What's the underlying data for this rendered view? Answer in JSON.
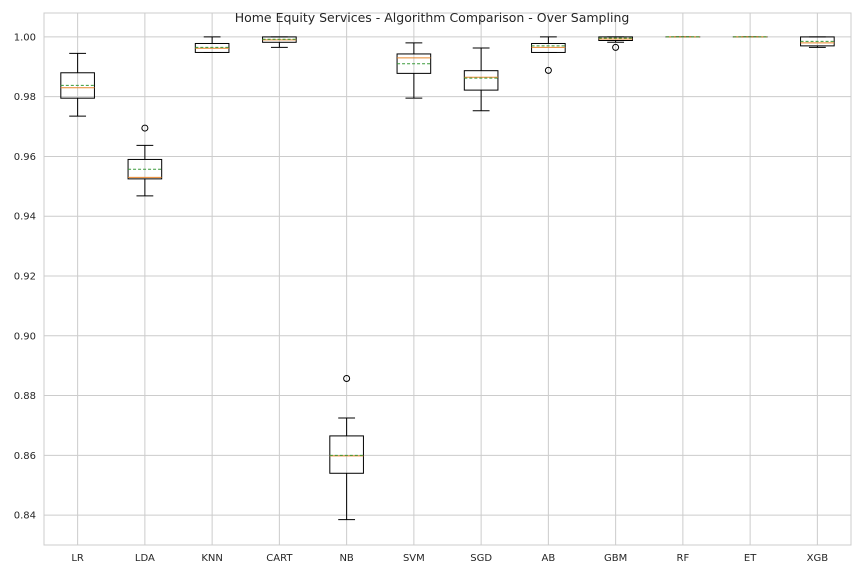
{
  "chart_data": {
    "type": "box",
    "title": "Home Equity Services - Algorithm Comparison - Over Sampling",
    "xlabel": "",
    "ylabel": "",
    "ylim": [
      0.83,
      1.008
    ],
    "yticks": [
      0.84,
      0.86,
      0.88,
      0.9,
      0.92,
      0.94,
      0.96,
      0.98,
      1.0
    ],
    "ytick_labels": [
      "0.84",
      "0.86",
      "0.88",
      "0.90",
      "0.92",
      "0.94",
      "0.96",
      "0.98",
      "1.00"
    ],
    "grid": true,
    "legend": "none",
    "show_means": true,
    "colors": {
      "box": "#000000",
      "median": "#e8862c",
      "mean": "#3a9a3a",
      "grid": "#cccccc",
      "frame": "#cccccc"
    },
    "categories": [
      "LR",
      "LDA",
      "KNN",
      "CART",
      "NB",
      "SVM",
      "SGD",
      "AB",
      "GBM",
      "RF",
      "ET",
      "XGB"
    ],
    "boxes": [
      {
        "label": "LR",
        "whislo": 0.9735,
        "q1": 0.9795,
        "med": 0.983,
        "mean": 0.9838,
        "q3": 0.988,
        "whishi": 0.9945,
        "fliers": []
      },
      {
        "label": "LDA",
        "whislo": 0.9468,
        "q1": 0.9525,
        "med": 0.953,
        "mean": 0.9557,
        "q3": 0.959,
        "whishi": 0.9637,
        "fliers": [
          0.9695
        ]
      },
      {
        "label": "KNN",
        "whislo": 0.9948,
        "q1": 0.9948,
        "med": 0.9962,
        "mean": 0.9965,
        "q3": 0.9978,
        "whishi": 1.0,
        "fliers": []
      },
      {
        "label": "CART",
        "whislo": 0.9965,
        "q1": 0.9982,
        "med": 0.999,
        "mean": 0.9992,
        "q3": 1.0,
        "whishi": 1.0,
        "fliers": []
      },
      {
        "label": "NB",
        "whislo": 0.8385,
        "q1": 0.854,
        "med": 0.8598,
        "mean": 0.86,
        "q3": 0.8665,
        "whishi": 0.8725,
        "fliers": [
          0.8857
        ]
      },
      {
        "label": "SVM",
        "whislo": 0.9795,
        "q1": 0.9878,
        "med": 0.993,
        "mean": 0.991,
        "q3": 0.9943,
        "whishi": 0.998,
        "fliers": []
      },
      {
        "label": "SGD",
        "whislo": 0.9753,
        "q1": 0.9822,
        "med": 0.9865,
        "mean": 0.9862,
        "q3": 0.9887,
        "whishi": 0.9963,
        "fliers": []
      },
      {
        "label": "AB",
        "whislo": 0.9948,
        "q1": 0.9948,
        "med": 0.9965,
        "mean": 0.997,
        "q3": 0.9978,
        "whishi": 1.0,
        "fliers": [
          0.9888
        ]
      },
      {
        "label": "GBM",
        "whislo": 0.9982,
        "q1": 0.9988,
        "med": 0.9993,
        "mean": 0.9996,
        "q3": 1.0,
        "whishi": 1.0,
        "fliers": [
          0.9965
        ]
      },
      {
        "label": "RF",
        "whislo": 1.0,
        "q1": 1.0,
        "med": 1.0,
        "mean": 1.0,
        "q3": 1.0,
        "whishi": 1.0,
        "fliers": []
      },
      {
        "label": "ET",
        "whislo": 1.0,
        "q1": 1.0,
        "med": 1.0,
        "mean": 1.0,
        "q3": 1.0,
        "whishi": 1.0,
        "fliers": []
      },
      {
        "label": "XGB",
        "whislo": 0.9965,
        "q1": 0.997,
        "med": 0.998,
        "mean": 0.9985,
        "q3": 1.0,
        "whishi": 1.0,
        "fliers": []
      }
    ]
  }
}
